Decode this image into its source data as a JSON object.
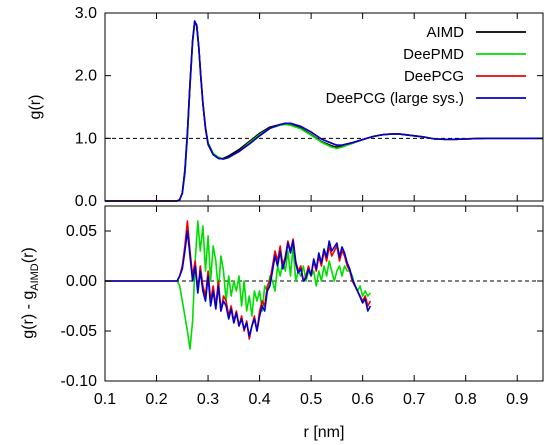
{
  "chart_data": [
    {
      "type": "line",
      "panel": "top",
      "ylabel": "g(r)",
      "xlim": [
        0.1,
        0.95
      ],
      "ylim": [
        0.0,
        3.0
      ],
      "xticks": [
        0.1,
        0.2,
        0.3,
        0.4,
        0.5,
        0.6,
        0.7,
        0.8,
        0.9
      ],
      "yticks": [
        0.0,
        1.0,
        2.0,
        3.0
      ],
      "ytick_labels": [
        "0.0",
        "1.0",
        "2.0",
        "3.0"
      ],
      "reference_line": {
        "y": 1.0,
        "style": "dashed"
      },
      "legend_position": "top-right",
      "grid": false,
      "series": [
        {
          "name": "AIMD",
          "color": "#000000",
          "x": [
            0.1,
            0.24,
            0.245,
            0.25,
            0.255,
            0.26,
            0.265,
            0.27,
            0.274,
            0.278,
            0.282,
            0.286,
            0.29,
            0.295,
            0.3,
            0.31,
            0.32,
            0.33,
            0.34,
            0.36,
            0.38,
            0.4,
            0.42,
            0.44,
            0.45,
            0.46,
            0.48,
            0.5,
            0.52,
            0.54,
            0.55,
            0.56,
            0.58,
            0.6,
            0.62,
            0.64,
            0.66,
            0.67,
            0.68,
            0.7,
            0.72,
            0.74,
            0.76,
            0.78,
            0.8,
            0.82,
            0.84,
            0.86,
            0.88,
            0.9,
            0.92,
            0.95
          ],
          "y": [
            0.0,
            0.0,
            0.02,
            0.12,
            0.45,
            1.05,
            1.85,
            2.55,
            2.86,
            2.8,
            2.45,
            1.98,
            1.55,
            1.15,
            0.9,
            0.74,
            0.68,
            0.68,
            0.72,
            0.82,
            0.95,
            1.08,
            1.18,
            1.22,
            1.23,
            1.22,
            1.16,
            1.06,
            0.95,
            0.88,
            0.86,
            0.87,
            0.92,
            0.98,
            1.03,
            1.06,
            1.07,
            1.07,
            1.06,
            1.04,
            1.02,
            0.99,
            0.985,
            0.985,
            0.99,
            0.995,
            1.0,
            1.0,
            1.0,
            1.0,
            1.0,
            1.0
          ]
        },
        {
          "name": "DeePMD",
          "color": "#00dd00",
          "x": [
            0.1,
            0.24,
            0.245,
            0.25,
            0.255,
            0.26,
            0.265,
            0.27,
            0.274,
            0.278,
            0.282,
            0.286,
            0.29,
            0.295,
            0.3,
            0.31,
            0.32,
            0.33,
            0.34,
            0.36,
            0.38,
            0.4,
            0.42,
            0.44,
            0.45,
            0.46,
            0.48,
            0.5,
            0.52,
            0.54,
            0.55,
            0.56,
            0.58,
            0.6,
            0.62,
            0.64,
            0.66,
            0.67,
            0.68,
            0.7,
            0.72,
            0.74,
            0.76,
            0.78,
            0.8,
            0.82,
            0.84,
            0.86,
            0.88,
            0.9,
            0.92,
            0.95
          ],
          "y": [
            0.0,
            0.0,
            0.02,
            0.11,
            0.43,
            1.02,
            1.82,
            2.52,
            2.84,
            2.82,
            2.47,
            2.0,
            1.57,
            1.18,
            0.93,
            0.76,
            0.7,
            0.67,
            0.69,
            0.79,
            0.93,
            1.06,
            1.16,
            1.21,
            1.22,
            1.21,
            1.15,
            1.05,
            0.94,
            0.86,
            0.84,
            0.86,
            0.92,
            0.98,
            1.03,
            1.06,
            1.07,
            1.07,
            1.06,
            1.04,
            1.02,
            0.99,
            0.985,
            0.985,
            0.99,
            0.995,
            1.0,
            1.0,
            1.0,
            1.0,
            1.0,
            1.0
          ]
        },
        {
          "name": "DeePCG",
          "color": "#ee0000",
          "x": [
            0.1,
            0.24,
            0.245,
            0.25,
            0.255,
            0.26,
            0.265,
            0.27,
            0.274,
            0.278,
            0.282,
            0.286,
            0.29,
            0.295,
            0.3,
            0.31,
            0.32,
            0.33,
            0.34,
            0.36,
            0.38,
            0.4,
            0.42,
            0.44,
            0.45,
            0.46,
            0.48,
            0.5,
            0.52,
            0.54,
            0.55,
            0.56,
            0.58,
            0.6,
            0.62,
            0.64,
            0.66,
            0.67,
            0.68,
            0.7,
            0.72,
            0.74,
            0.76,
            0.78,
            0.8,
            0.82,
            0.84,
            0.86,
            0.88,
            0.9,
            0.92,
            0.95
          ],
          "y": [
            0.0,
            0.0,
            0.02,
            0.13,
            0.5,
            1.1,
            1.88,
            2.56,
            2.87,
            2.8,
            2.45,
            1.99,
            1.56,
            1.16,
            0.91,
            0.74,
            0.68,
            0.67,
            0.7,
            0.79,
            0.91,
            1.04,
            1.16,
            1.22,
            1.24,
            1.24,
            1.19,
            1.1,
            0.99,
            0.92,
            0.89,
            0.89,
            0.93,
            0.98,
            1.03,
            1.06,
            1.07,
            1.07,
            1.06,
            1.04,
            1.02,
            0.99,
            0.985,
            0.985,
            0.99,
            0.995,
            1.0,
            1.0,
            1.0,
            1.0,
            1.0,
            1.0
          ]
        },
        {
          "name": "DeePCG (large sys.)",
          "color": "#0000cc",
          "x": [
            0.1,
            0.24,
            0.245,
            0.25,
            0.255,
            0.26,
            0.265,
            0.27,
            0.274,
            0.278,
            0.282,
            0.286,
            0.29,
            0.295,
            0.3,
            0.31,
            0.32,
            0.33,
            0.34,
            0.36,
            0.38,
            0.4,
            0.42,
            0.44,
            0.45,
            0.46,
            0.48,
            0.5,
            0.52,
            0.54,
            0.55,
            0.56,
            0.58,
            0.6,
            0.62,
            0.64,
            0.66,
            0.67,
            0.68,
            0.7,
            0.72,
            0.74,
            0.76,
            0.78,
            0.8,
            0.82,
            0.84,
            0.86,
            0.88,
            0.9,
            0.92,
            0.95
          ],
          "y": [
            0.0,
            0.0,
            0.02,
            0.13,
            0.49,
            1.09,
            1.87,
            2.56,
            2.87,
            2.8,
            2.45,
            1.99,
            1.56,
            1.16,
            0.91,
            0.74,
            0.68,
            0.67,
            0.7,
            0.79,
            0.91,
            1.04,
            1.16,
            1.22,
            1.24,
            1.24,
            1.19,
            1.1,
            0.99,
            0.92,
            0.89,
            0.89,
            0.93,
            0.98,
            1.03,
            1.06,
            1.07,
            1.07,
            1.06,
            1.04,
            1.02,
            0.99,
            0.985,
            0.985,
            0.99,
            0.995,
            1.0,
            1.0,
            1.0,
            1.0,
            1.0,
            1.0
          ]
        }
      ]
    },
    {
      "type": "line",
      "panel": "bottom",
      "ylabel_main": "g(r) - g",
      "ylabel_sub": "AIMD",
      "ylabel_tail": "(r)",
      "xlabel": "r [nm]",
      "xlim": [
        0.1,
        0.95
      ],
      "ylim": [
        -0.1,
        0.075
      ],
      "xticks": [
        0.1,
        0.2,
        0.3,
        0.4,
        0.5,
        0.6,
        0.7,
        0.8,
        0.9
      ],
      "xtick_labels": [
        "0.1",
        "0.2",
        "0.3",
        "0.4",
        "0.5",
        "0.6",
        "0.7",
        "0.8",
        "0.9"
      ],
      "yticks": [
        -0.1,
        -0.05,
        0.0,
        0.05
      ],
      "ytick_labels": [
        "-0.10",
        "-0.05",
        "0.00",
        "0.05"
      ],
      "reference_line": {
        "y": 0.0,
        "style": "dashed"
      },
      "grid": false,
      "series": [
        {
          "name": "DeePMD",
          "color": "#00dd00",
          "x": [
            0.1,
            0.24,
            0.245,
            0.25,
            0.255,
            0.26,
            0.265,
            0.27,
            0.275,
            0.28,
            0.285,
            0.29,
            0.295,
            0.3,
            0.305,
            0.31,
            0.315,
            0.32,
            0.325,
            0.33,
            0.335,
            0.34,
            0.345,
            0.35,
            0.355,
            0.36,
            0.365,
            0.37,
            0.375,
            0.38,
            0.385,
            0.39,
            0.395,
            0.4,
            0.405,
            0.41,
            0.415,
            0.42,
            0.425,
            0.43,
            0.435,
            0.44,
            0.445,
            0.45,
            0.455,
            0.46,
            0.465,
            0.47,
            0.475,
            0.48,
            0.485,
            0.49,
            0.495,
            0.5,
            0.505,
            0.51,
            0.515,
            0.52,
            0.525,
            0.53,
            0.535,
            0.54,
            0.545,
            0.55,
            0.555,
            0.56,
            0.565,
            0.57,
            0.575,
            0.58,
            0.585,
            0.59,
            0.595,
            0.6,
            0.605,
            0.61,
            0.615
          ],
          "y": [
            0.0,
            0.0,
            -0.005,
            -0.02,
            -0.035,
            -0.05,
            -0.068,
            -0.04,
            0.02,
            0.06,
            0.03,
            0.055,
            0.01,
            0.045,
            0.0,
            0.035,
            0.02,
            -0.01,
            0.025,
            0.01,
            -0.02,
            0.005,
            -0.015,
            0.0,
            -0.01,
            0.005,
            -0.025,
            0.0,
            -0.03,
            -0.015,
            -0.035,
            -0.01,
            -0.02,
            -0.01,
            -0.03,
            -0.005,
            -0.01,
            0.005,
            0.0,
            -0.01,
            0.015,
            0.005,
            0.02,
            0.01,
            0.03,
            0.005,
            0.035,
            0.0,
            0.01,
            0.005,
            0.015,
            0.0,
            0.01,
            0.005,
            0.01,
            -0.005,
            0.01,
            0.0,
            0.015,
            0.005,
            0.02,
            0.01,
            0.0,
            0.01,
            0.015,
            0.005,
            0.015,
            0.01,
            0.01,
            0.005,
            -0.005,
            -0.01,
            -0.005,
            -0.015,
            -0.01,
            -0.015,
            -0.012
          ]
        },
        {
          "name": "DeePCG",
          "color": "#ee0000",
          "x": [
            0.1,
            0.24,
            0.245,
            0.25,
            0.255,
            0.26,
            0.265,
            0.27,
            0.275,
            0.28,
            0.285,
            0.29,
            0.295,
            0.3,
            0.305,
            0.31,
            0.315,
            0.32,
            0.325,
            0.33,
            0.335,
            0.34,
            0.345,
            0.35,
            0.355,
            0.36,
            0.365,
            0.37,
            0.375,
            0.38,
            0.385,
            0.39,
            0.395,
            0.4,
            0.405,
            0.41,
            0.415,
            0.42,
            0.425,
            0.43,
            0.435,
            0.44,
            0.445,
            0.45,
            0.455,
            0.46,
            0.465,
            0.47,
            0.475,
            0.48,
            0.485,
            0.49,
            0.495,
            0.5,
            0.505,
            0.51,
            0.515,
            0.52,
            0.525,
            0.53,
            0.535,
            0.54,
            0.545,
            0.55,
            0.555,
            0.56,
            0.565,
            0.57,
            0.575,
            0.58,
            0.585,
            0.59,
            0.595,
            0.6,
            0.605,
            0.61,
            0.615
          ],
          "y": [
            0.0,
            0.0,
            0.005,
            0.015,
            0.035,
            0.06,
            0.03,
            0.005,
            0.02,
            -0.01,
            0.015,
            -0.005,
            -0.015,
            0.01,
            -0.02,
            -0.005,
            -0.025,
            0.0,
            -0.03,
            -0.015,
            -0.02,
            -0.035,
            -0.025,
            -0.04,
            -0.03,
            -0.045,
            -0.035,
            -0.05,
            -0.04,
            -0.058,
            -0.045,
            -0.035,
            -0.05,
            -0.03,
            -0.02,
            -0.025,
            -0.005,
            0.0,
            0.015,
            0.03,
            0.02,
            0.035,
            0.015,
            0.025,
            0.04,
            0.03,
            0.042,
            0.02,
            0.01,
            0.015,
            0.0,
            0.005,
            0.015,
            0.005,
            0.02,
            0.01,
            0.025,
            0.015,
            0.03,
            0.02,
            0.035,
            0.025,
            0.03,
            0.035,
            0.02,
            0.03,
            0.025,
            0.015,
            0.01,
            0.0,
            -0.005,
            -0.01,
            -0.015,
            -0.02,
            -0.015,
            -0.025,
            -0.02
          ]
        },
        {
          "name": "DeePCG (large sys.)",
          "color": "#0000cc",
          "x": [
            0.1,
            0.24,
            0.245,
            0.25,
            0.255,
            0.26,
            0.265,
            0.27,
            0.275,
            0.28,
            0.285,
            0.29,
            0.295,
            0.3,
            0.305,
            0.31,
            0.315,
            0.32,
            0.325,
            0.33,
            0.335,
            0.34,
            0.345,
            0.35,
            0.355,
            0.36,
            0.365,
            0.37,
            0.375,
            0.38,
            0.385,
            0.39,
            0.395,
            0.4,
            0.405,
            0.41,
            0.415,
            0.42,
            0.425,
            0.43,
            0.435,
            0.44,
            0.445,
            0.45,
            0.455,
            0.46,
            0.465,
            0.47,
            0.475,
            0.48,
            0.485,
            0.49,
            0.495,
            0.5,
            0.505,
            0.51,
            0.515,
            0.52,
            0.525,
            0.53,
            0.535,
            0.54,
            0.545,
            0.55,
            0.555,
            0.56,
            0.565,
            0.57,
            0.575,
            0.58,
            0.585,
            0.59,
            0.595,
            0.6,
            0.605,
            0.61,
            0.615
          ],
          "y": [
            0.0,
            0.0,
            0.005,
            0.012,
            0.03,
            0.05,
            0.025,
            0.0,
            0.015,
            -0.012,
            0.01,
            -0.01,
            -0.02,
            0.005,
            -0.025,
            -0.01,
            -0.028,
            -0.005,
            -0.03,
            -0.02,
            -0.025,
            -0.038,
            -0.028,
            -0.042,
            -0.032,
            -0.045,
            -0.038,
            -0.048,
            -0.042,
            -0.055,
            -0.045,
            -0.038,
            -0.05,
            -0.035,
            -0.025,
            -0.03,
            -0.01,
            -0.005,
            0.01,
            0.025,
            0.015,
            0.03,
            0.012,
            0.022,
            0.038,
            0.028,
            0.04,
            0.018,
            0.008,
            0.012,
            0.0,
            0.003,
            0.012,
            0.006,
            0.022,
            0.012,
            0.028,
            0.018,
            0.032,
            0.024,
            0.04,
            0.03,
            0.034,
            0.038,
            0.024,
            0.034,
            0.028,
            0.018,
            0.012,
            0.002,
            -0.004,
            -0.01,
            -0.016,
            -0.022,
            -0.018,
            -0.03,
            -0.025
          ]
        }
      ]
    }
  ]
}
